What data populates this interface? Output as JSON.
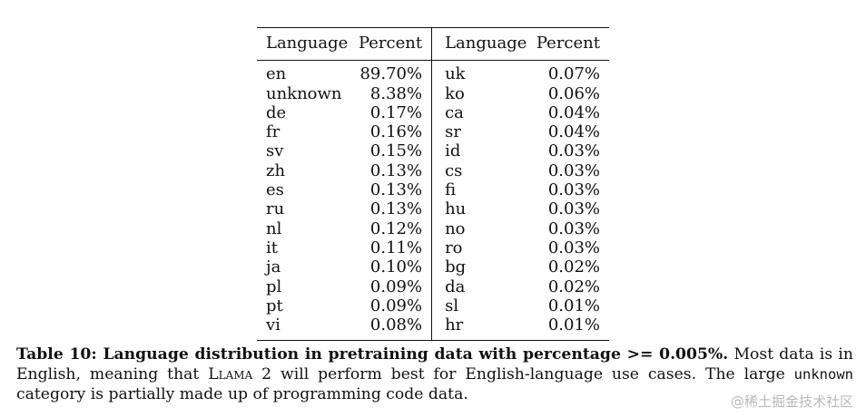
{
  "table": {
    "headers": [
      "Language",
      "Percent",
      "Language",
      "Percent"
    ],
    "rows": [
      [
        "en",
        "89.70%",
        "uk",
        "0.07%"
      ],
      [
        "unknown",
        "8.38%",
        "ko",
        "0.06%"
      ],
      [
        "de",
        "0.17%",
        "ca",
        "0.04%"
      ],
      [
        "fr",
        "0.16%",
        "sr",
        "0.04%"
      ],
      [
        "sv",
        "0.15%",
        "id",
        "0.03%"
      ],
      [
        "zh",
        "0.13%",
        "cs",
        "0.03%"
      ],
      [
        "es",
        "0.13%",
        "fi",
        "0.03%"
      ],
      [
        "ru",
        "0.13%",
        "hu",
        "0.03%"
      ],
      [
        "nl",
        "0.12%",
        "no",
        "0.03%"
      ],
      [
        "it",
        "0.11%",
        "ro",
        "0.03%"
      ],
      [
        "ja",
        "0.10%",
        "bg",
        "0.02%"
      ],
      [
        "pl",
        "0.09%",
        "da",
        "0.02%"
      ],
      [
        "pt",
        "0.09%",
        "sl",
        "0.01%"
      ],
      [
        "vi",
        "0.08%",
        "hr",
        "0.01%"
      ]
    ]
  },
  "caption": {
    "bold": "Table 10: Language distribution in pretraining data with percentage >= 0.005%",
    "bold_period": ".",
    "text_1": " Most data is in English, meaning that ",
    "model_name": "Llama 2",
    "text_2": " will perform best for English-language use cases. The large ",
    "code_term": "unknown",
    "text_3": " category is partially made up of programming code data."
  },
  "watermark": {
    "text": "@稀土掘金技术社区"
  }
}
